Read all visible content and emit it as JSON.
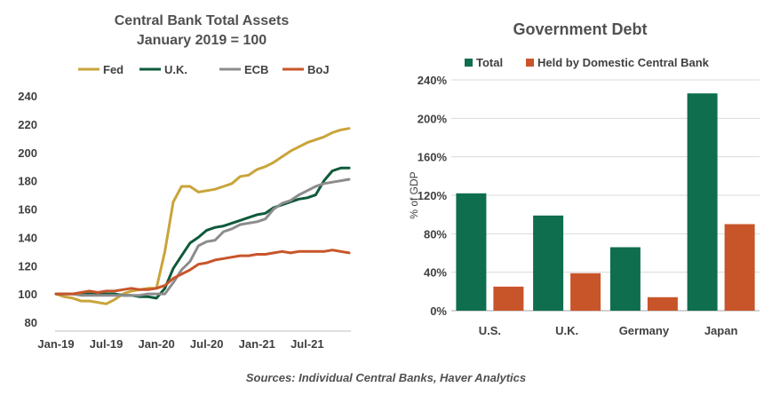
{
  "sources": "Sources: Individual Central Banks, Haver Analytics",
  "chart_data": [
    {
      "type": "line",
      "title": "Central Bank Total Assets",
      "subtitle": "January 2019 = 100",
      "ylim": [
        80,
        240
      ],
      "yticks": [
        80,
        100,
        120,
        140,
        160,
        180,
        200,
        220,
        240
      ],
      "xticks": [
        "Jan-19",
        "Jul-19",
        "Jan-20",
        "Jul-20",
        "Jan-21",
        "Jul-21"
      ],
      "x": [
        "2019-01",
        "2019-02",
        "2019-03",
        "2019-04",
        "2019-05",
        "2019-06",
        "2019-07",
        "2019-08",
        "2019-09",
        "2019-10",
        "2019-11",
        "2019-12",
        "2020-01",
        "2020-02",
        "2020-03",
        "2020-04",
        "2020-05",
        "2020-06",
        "2020-07",
        "2020-08",
        "2020-09",
        "2020-10",
        "2020-11",
        "2020-12",
        "2021-01",
        "2021-02",
        "2021-03",
        "2021-04",
        "2021-05",
        "2021-06",
        "2021-07",
        "2021-08",
        "2021-09",
        "2021-10",
        "2021-11",
        "2021-12"
      ],
      "grid": false,
      "legend_position": "top",
      "colors": {
        "Fed": "#C9A43A",
        "U.K.": "#0E5A3A",
        "ECB": "#8C8C8C",
        "BoJ": "#C8552A"
      },
      "series": [
        {
          "name": "Fed",
          "values": [
            100,
            98,
            97,
            95,
            95,
            94,
            93,
            96,
            100,
            102,
            103,
            104,
            104,
            130,
            165,
            176,
            176,
            172,
            173,
            174,
            176,
            178,
            183,
            184,
            188,
            190,
            193,
            197,
            201,
            204,
            207,
            209,
            211,
            214,
            216,
            217
          ]
        },
        {
          "name": "U.K.",
          "values": [
            100,
            100,
            100,
            100,
            100,
            100,
            100,
            100,
            99,
            99,
            98,
            98,
            97,
            104,
            118,
            127,
            136,
            140,
            145,
            147,
            148,
            150,
            152,
            154,
            156,
            157,
            161,
            163,
            165,
            167,
            168,
            170,
            180,
            187,
            189,
            189
          ]
        },
        {
          "name": "ECB",
          "values": [
            100,
            100,
            100,
            99,
            99,
            99,
            99,
            99,
            99,
            99,
            99,
            100,
            100,
            100,
            108,
            117,
            123,
            134,
            137,
            138,
            144,
            146,
            149,
            150,
            151,
            153,
            160,
            164,
            166,
            170,
            173,
            176,
            178,
            179,
            180,
            181
          ]
        },
        {
          "name": "BoJ",
          "values": [
            100,
            100,
            100,
            101,
            102,
            101,
            102,
            102,
            103,
            104,
            103,
            103,
            104,
            106,
            111,
            114,
            117,
            121,
            122,
            124,
            125,
            126,
            127,
            127,
            128,
            128,
            129,
            130,
            129,
            130,
            130,
            130,
            130,
            131,
            130,
            129
          ]
        }
      ]
    },
    {
      "type": "bar",
      "title": "Government Debt",
      "ylabel": "% of GDP",
      "ylim": [
        0,
        240
      ],
      "yticks": [
        "0%",
        "40%",
        "80%",
        "120%",
        "160%",
        "200%",
        "240%"
      ],
      "categories": [
        "U.S.",
        "U.K.",
        "Germany",
        "Japan"
      ],
      "grid": true,
      "legend_position": "top",
      "colors": {
        "Total": "#0E6E4E",
        "Held by Domestic Central Bank": "#C8552A"
      },
      "series": [
        {
          "name": "Total",
          "values": [
            122,
            99,
            66,
            226
          ]
        },
        {
          "name": "Held by Domestic Central Bank",
          "values": [
            25,
            39,
            14,
            90
          ]
        }
      ]
    }
  ]
}
